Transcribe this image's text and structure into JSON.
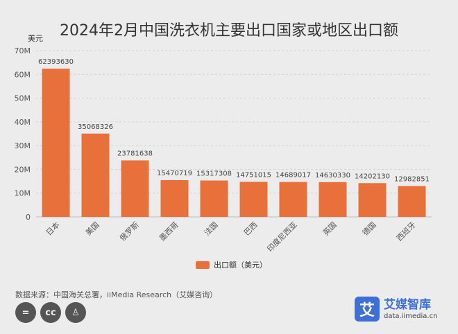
{
  "title": "2024年2月中国洗衣机主要出口国家或地区出口额",
  "unit_label": "美元",
  "legend_label": "出口额（美元）",
  "source": "数据来源：中国海关总署，iiMedia Research（艾媒咨询）",
  "colors": {
    "bar": "#e8703a",
    "grid": "#d2d2d2",
    "axis_text": "#555555",
    "label_text": "#444444"
  },
  "cc_icons": [
    {
      "name": "equals-icon",
      "glyph": "="
    },
    {
      "name": "cc-icon",
      "glyph": "cc"
    },
    {
      "name": "person-icon",
      "glyph": "♙"
    }
  ],
  "brand": {
    "logo_glyph": "艾",
    "name": "艾媒智库",
    "url": "data.iimedia.cn"
  },
  "chart_data": {
    "type": "bar",
    "categories": [
      "日本",
      "美国",
      "俄罗斯",
      "墨西哥",
      "法国",
      "巴西",
      "印度尼西亚",
      "英国",
      "德国",
      "西班牙"
    ],
    "values": [
      62393630,
      35068326,
      23781638,
      15470719,
      15317308,
      14751015,
      14689017,
      14630330,
      14202130,
      12982851
    ],
    "value_labels": [
      "62393630",
      "35068326",
      "23781638",
      "15470719",
      "15317308",
      "14751015",
      "14689017",
      "14630330",
      "14202130",
      "12982851"
    ],
    "y_ticks": [
      0,
      10000000,
      20000000,
      30000000,
      40000000,
      50000000,
      60000000,
      70000000
    ],
    "y_tick_labels": [
      "0",
      "10M",
      "20M",
      "30M",
      "40M",
      "50M",
      "60M",
      "70M"
    ],
    "ylim": [
      0,
      70000000
    ],
    "grid": true,
    "legend_position": "bottom-center"
  }
}
